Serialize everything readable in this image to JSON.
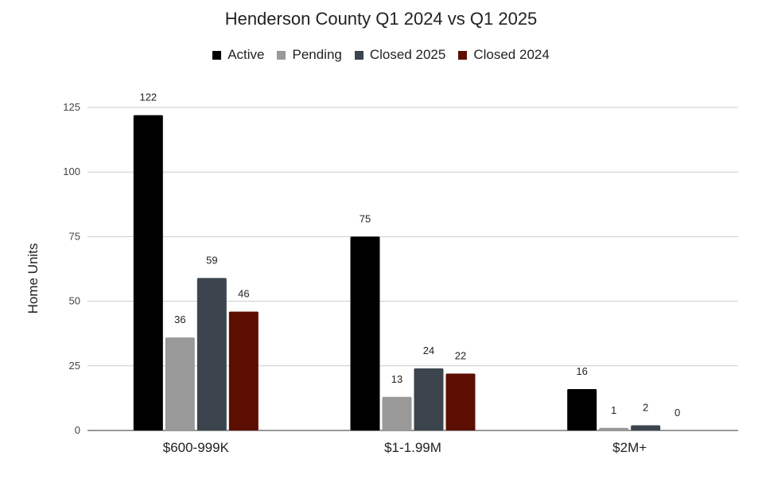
{
  "chart_data": {
    "type": "bar",
    "title": "Henderson County Q1 2024 vs Q1 2025",
    "xlabel": "",
    "ylabel": "Home Units",
    "ylim": [
      0,
      125
    ],
    "yticks": [
      0,
      25,
      50,
      75,
      100,
      125
    ],
    "grid": true,
    "legend_position": "top",
    "categories": [
      "$600-999K",
      "$1-1.99M",
      "$2M+"
    ],
    "series": [
      {
        "name": "Active",
        "color": "#000000",
        "values": [
          122,
          75,
          16
        ]
      },
      {
        "name": "Pending",
        "color": "#999999",
        "values": [
          36,
          13,
          1
        ]
      },
      {
        "name": "Closed 2025",
        "color": "#3c454e",
        "values": [
          59,
          24,
          2
        ]
      },
      {
        "name": "Closed 2024",
        "color": "#5c0f00",
        "values": [
          46,
          22,
          0
        ]
      }
    ]
  }
}
